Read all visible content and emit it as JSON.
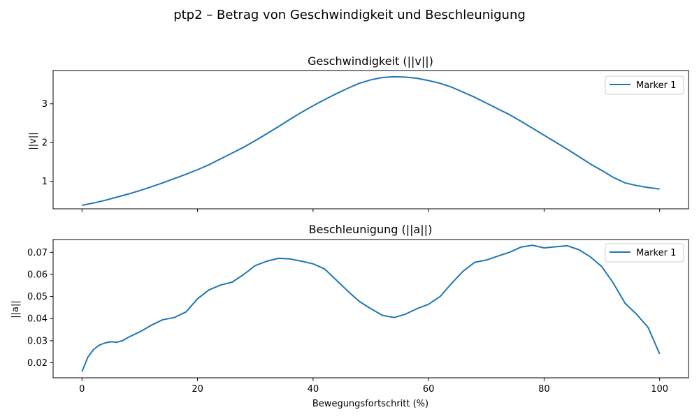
{
  "figure": {
    "suptitle": "ptp2 – Betrag von Geschwindigkeit und Beschleunigung",
    "xlabel": "Bewegungsfortschritt (%)"
  },
  "colors": {
    "line": "#1f77b4",
    "axes": "#000000",
    "background": "#ffffff"
  },
  "chart_data": [
    {
      "type": "line",
      "title": "Geschwindigkeit (||v||)",
      "ylabel": "||v||",
      "xlim": [
        -5,
        105
      ],
      "ylim": [
        0.29,
        3.86
      ],
      "xticks": [
        0,
        20,
        40,
        60,
        80,
        100
      ],
      "xtick_labels_visible": false,
      "yticks": [
        1,
        2,
        3
      ],
      "legend": {
        "placement": "top-right",
        "entries": [
          "Marker 1"
        ]
      },
      "grid": false,
      "series": [
        {
          "name": "Marker 1",
          "x": [
            0,
            2,
            4,
            6,
            8,
            10,
            12,
            14,
            16,
            18,
            20,
            22,
            24,
            26,
            28,
            30,
            32,
            34,
            36,
            38,
            40,
            42,
            44,
            46,
            48,
            50,
            52,
            54,
            56,
            58,
            60,
            62,
            64,
            66,
            68,
            70,
            72,
            74,
            76,
            78,
            80,
            82,
            84,
            86,
            88,
            90,
            92,
            94,
            96,
            98,
            100
          ],
          "y": [
            0.38,
            0.44,
            0.51,
            0.59,
            0.67,
            0.76,
            0.86,
            0.96,
            1.07,
            1.18,
            1.3,
            1.43,
            1.58,
            1.73,
            1.88,
            2.05,
            2.23,
            2.41,
            2.6,
            2.78,
            2.95,
            3.11,
            3.26,
            3.4,
            3.53,
            3.62,
            3.68,
            3.7,
            3.69,
            3.66,
            3.6,
            3.53,
            3.43,
            3.3,
            3.17,
            3.02,
            2.87,
            2.72,
            2.55,
            2.37,
            2.19,
            2.01,
            1.83,
            1.64,
            1.45,
            1.28,
            1.1,
            0.96,
            0.89,
            0.84,
            0.8
          ]
        }
      ]
    },
    {
      "type": "line",
      "title": "Beschleunigung (||a||)",
      "ylabel": "||a||",
      "xlim": [
        -5,
        105
      ],
      "ylim": [
        0.0132,
        0.0758
      ],
      "xticks": [
        0,
        20,
        40,
        60,
        80,
        100
      ],
      "yticks": [
        0.02,
        0.03,
        0.04,
        0.05,
        0.06,
        0.07
      ],
      "legend": {
        "placement": "top-right",
        "entries": [
          "Marker 1"
        ]
      },
      "grid": false,
      "series": [
        {
          "name": "Marker 1",
          "x": [
            0,
            1,
            2,
            3,
            4,
            5,
            6,
            7,
            8,
            10,
            12,
            14,
            16,
            18,
            20,
            22,
            24,
            26,
            28,
            30,
            32,
            34,
            36,
            38,
            40,
            42,
            44,
            46,
            48,
            50,
            52,
            54,
            56,
            58,
            60,
            62,
            64,
            66,
            68,
            70,
            72,
            74,
            76,
            78,
            80,
            82,
            84,
            86,
            88,
            90,
            92,
            94,
            96,
            98,
            100
          ],
          "y": [
            0.016,
            0.0225,
            0.026,
            0.028,
            0.029,
            0.0295,
            0.0293,
            0.03,
            0.0315,
            0.034,
            0.037,
            0.0395,
            0.0405,
            0.043,
            0.049,
            0.053,
            0.0552,
            0.0565,
            0.06,
            0.064,
            0.066,
            0.0673,
            0.067,
            0.066,
            0.0648,
            0.0625,
            0.0575,
            0.0525,
            0.0478,
            0.0445,
            0.0415,
            0.0405,
            0.042,
            0.0445,
            0.0465,
            0.05,
            0.056,
            0.0615,
            0.0655,
            0.0665,
            0.0683,
            0.07,
            0.0724,
            0.0732,
            0.072,
            0.0725,
            0.073,
            0.0712,
            0.068,
            0.0635,
            0.056,
            0.047,
            0.042,
            0.036,
            0.024
          ]
        }
      ]
    }
  ]
}
